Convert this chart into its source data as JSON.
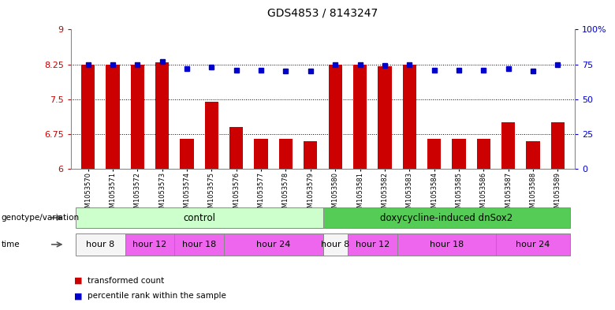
{
  "title": "GDS4853 / 8143247",
  "samples": [
    "GSM1053570",
    "GSM1053571",
    "GSM1053572",
    "GSM1053573",
    "GSM1053574",
    "GSM1053575",
    "GSM1053576",
    "GSM1053577",
    "GSM1053578",
    "GSM1053579",
    "GSM1053580",
    "GSM1053581",
    "GSM1053582",
    "GSM1053583",
    "GSM1053584",
    "GSM1053585",
    "GSM1053586",
    "GSM1053587",
    "GSM1053588",
    "GSM1053589"
  ],
  "bar_values": [
    8.25,
    8.25,
    8.25,
    8.3,
    6.65,
    7.45,
    6.9,
    6.65,
    6.65,
    6.6,
    8.25,
    8.25,
    8.2,
    8.25,
    6.65,
    6.65,
    6.65,
    7.0,
    6.6,
    7.0
  ],
  "percentile_values": [
    75,
    75,
    75,
    77,
    72,
    73,
    71,
    71,
    70,
    70,
    75,
    75,
    74,
    75,
    71,
    71,
    71,
    72,
    70,
    75
  ],
  "bar_color": "#cc0000",
  "percentile_color": "#0000cc",
  "ylim_left": [
    6,
    9
  ],
  "ylim_right": [
    0,
    100
  ],
  "yticks_left": [
    6,
    6.75,
    7.5,
    8.25,
    9
  ],
  "yticks_right": [
    0,
    25,
    50,
    75,
    100
  ],
  "ytick_labels_left": [
    "6",
    "6.75",
    "7.5",
    "8.25",
    "9"
  ],
  "ytick_labels_right": [
    "0",
    "25",
    "50",
    "75",
    "100%"
  ],
  "grid_values": [
    6.75,
    7.5,
    8.25
  ],
  "genotype_groups": [
    {
      "label": "control",
      "start": 0,
      "end": 10,
      "color": "#ccffcc",
      "text_color": "#000000"
    },
    {
      "label": "doxycycline-induced dnSox2",
      "start": 10,
      "end": 20,
      "color": "#55cc55",
      "text_color": "#000000"
    }
  ],
  "time_groups": [
    {
      "label": "hour 8",
      "start": 0,
      "end": 2,
      "color": "#f5f5f5"
    },
    {
      "label": "hour 12",
      "start": 2,
      "end": 4,
      "color": "#ee66ee"
    },
    {
      "label": "hour 18",
      "start": 4,
      "end": 6,
      "color": "#ee66ee"
    },
    {
      "label": "hour 24",
      "start": 6,
      "end": 10,
      "color": "#ee66ee"
    },
    {
      "label": "hour 8",
      "start": 10,
      "end": 11,
      "color": "#f5f5f5"
    },
    {
      "label": "hour 12",
      "start": 11,
      "end": 13,
      "color": "#ee66ee"
    },
    {
      "label": "hour 18",
      "start": 13,
      "end": 17,
      "color": "#ee66ee"
    },
    {
      "label": "hour 24",
      "start": 17,
      "end": 20,
      "color": "#ee66ee"
    }
  ],
  "legend_items": [
    {
      "label": "transformed count",
      "color": "#cc0000"
    },
    {
      "label": "percentile rank within the sample",
      "color": "#0000cc"
    }
  ],
  "background_color": "#ffffff"
}
